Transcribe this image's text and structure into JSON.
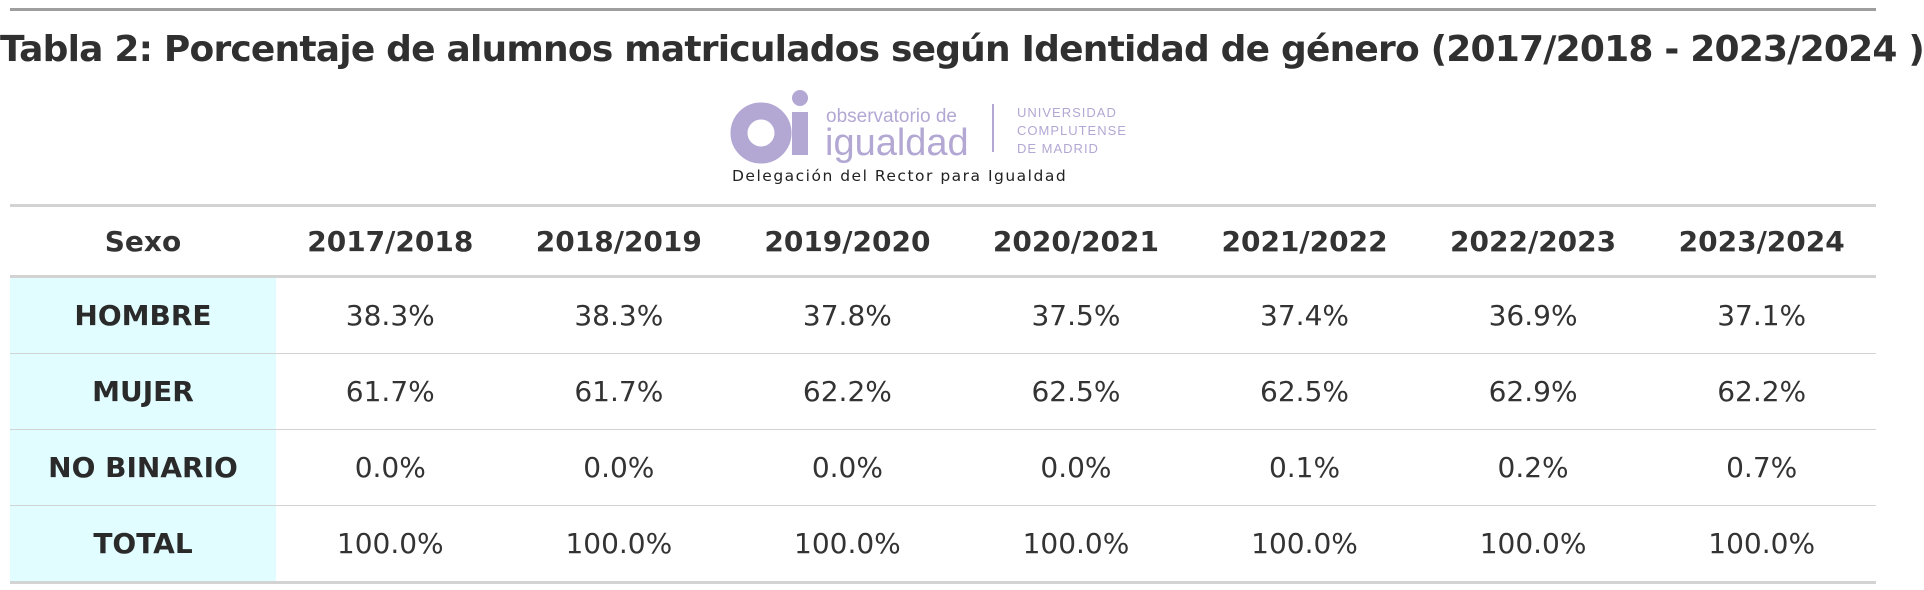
{
  "title": "Tabla 2: Porcentaje de alumnos matriculados según Identidad de género (2017/2018 - 2023/2024 )",
  "logo": {
    "mark": "oi",
    "line1": "observatorio de",
    "line2": "igualdad",
    "institution": [
      "UNIVERSIDAD",
      "COMPLUTENSE",
      "DE MADRID"
    ],
    "tagline": "Delegación del Rector para Igualdad",
    "color": "#b3a7d3"
  },
  "table": {
    "headers": [
      "Sexo",
      "2017/2018",
      "2018/2019",
      "2019/2020",
      "2020/2021",
      "2021/2022",
      "2022/2023",
      "2023/2024"
    ],
    "rows": [
      {
        "label": "HOMBRE",
        "values": [
          "38.3%",
          "38.3%",
          "37.8%",
          "37.5%",
          "37.4%",
          "36.9%",
          "37.1%"
        ]
      },
      {
        "label": "MUJER",
        "values": [
          "61.7%",
          "61.7%",
          "62.2%",
          "62.5%",
          "62.5%",
          "62.9%",
          "62.2%"
        ]
      },
      {
        "label": "NO BINARIO",
        "values": [
          "0.0%",
          "0.0%",
          "0.0%",
          "0.0%",
          "0.1%",
          "0.2%",
          "0.7%"
        ]
      },
      {
        "label": "TOTAL",
        "values": [
          "100.0%",
          "100.0%",
          "100.0%",
          "100.0%",
          "100.0%",
          "100.0%",
          "100.0%"
        ]
      }
    ],
    "label_bg": "#e1fdff"
  }
}
